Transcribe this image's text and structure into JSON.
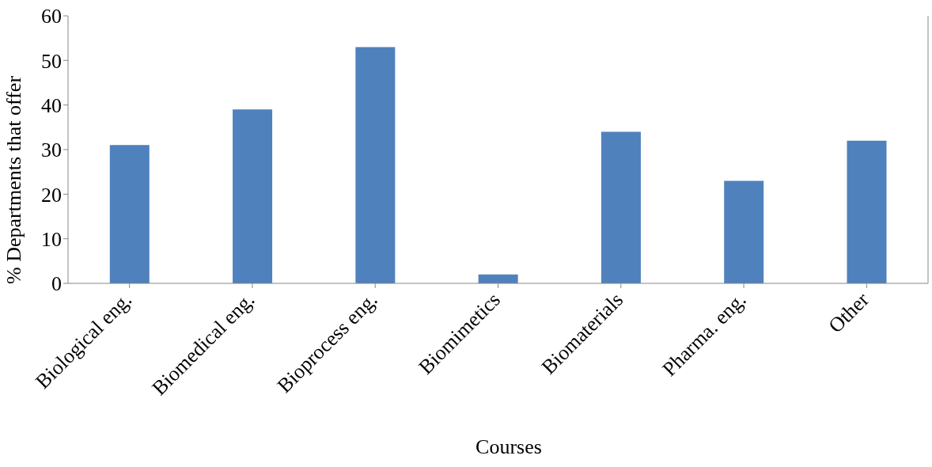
{
  "chart_data": {
    "type": "bar",
    "xlabel": "Courses",
    "ylabel": "% Departments that offer",
    "categories": [
      "Biological eng.",
      "Biomedical eng.",
      "Bioprocess eng.",
      "Biomimetics",
      "Biomaterials",
      "Pharma. eng.",
      "Other"
    ],
    "values": [
      31,
      39,
      53,
      2,
      34,
      23,
      32
    ],
    "color": "#4f81bd",
    "ylim": [
      0,
      60
    ],
    "yticks": [
      0,
      10,
      20,
      30,
      40,
      50,
      60
    ],
    "grid": false,
    "legend": false
  }
}
